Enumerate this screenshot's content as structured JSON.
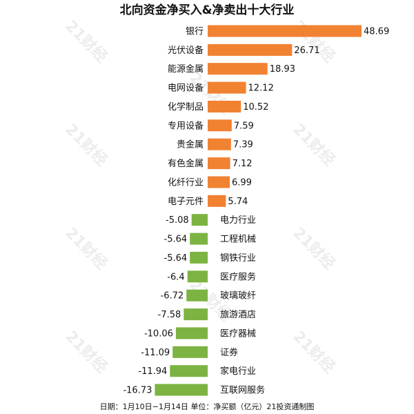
{
  "chart_data": {
    "type": "bar",
    "orientation": "horizontal",
    "title": "北向资金净买入&净卖出十大行业",
    "categories": [
      "银行",
      "光伏设备",
      "能源金属",
      "电网设备",
      "化学制品",
      "专用设备",
      "贵金属",
      "有色金属",
      "化纤行业",
      "电子元件",
      "电力行业",
      "工程机械",
      "钢铁行业",
      "医疗服务",
      "玻璃玻纤",
      "旅游酒店",
      "医疗器械",
      "证券",
      "家电行业",
      "互联网服务"
    ],
    "values": [
      48.69,
      26.71,
      18.93,
      12.12,
      10.52,
      7.59,
      7.39,
      7.12,
      6.99,
      5.74,
      -5.08,
      -5.64,
      -5.64,
      -6.4,
      -6.72,
      -7.58,
      -10.06,
      -11.09,
      -11.94,
      -16.73
    ],
    "value_labels": [
      "48.69",
      "26.71",
      "18.93",
      "12.12",
      "10.52",
      "7.59",
      "7.39",
      "7.12",
      "6.99",
      "5.74",
      "-5.08",
      "-5.64",
      "-5.64",
      "-6.4",
      "-6.72",
      "-7.58",
      "-10.06",
      "-11.09",
      "-11.94",
      "-16.73"
    ],
    "xlim": [
      -16.73,
      48.69
    ],
    "grid": false,
    "colors": {
      "positive": "#f08232",
      "negative": "#7cb342"
    },
    "footer": "日期：1月10日−1月14日 单位：净买额（亿元）21投资通制图",
    "watermark": "21财经"
  }
}
